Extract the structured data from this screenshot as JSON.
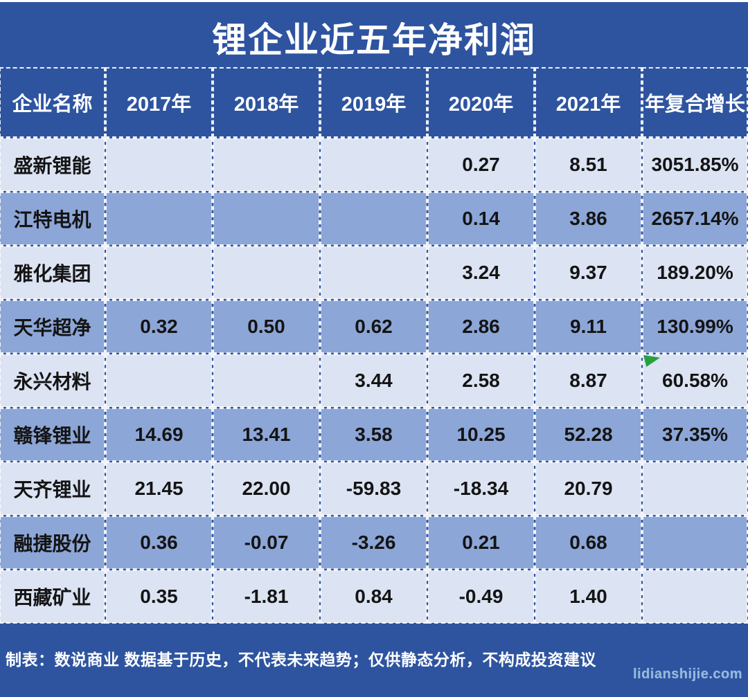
{
  "title": "锂企业近五年净利润",
  "chart_data": {
    "type": "table",
    "title": "锂企业近五年净利润",
    "columns": [
      "企业名称",
      "2017年",
      "2018年",
      "2019年",
      "2020年",
      "2021年",
      "年复合增长"
    ],
    "rows": [
      [
        "盛新锂能",
        "",
        "",
        "",
        "0.27",
        "8.51",
        "3051.85%"
      ],
      [
        "江特电机",
        "",
        "",
        "",
        "0.14",
        "3.86",
        "2657.14%"
      ],
      [
        "雅化集团",
        "",
        "",
        "",
        "3.24",
        "9.37",
        "189.20%"
      ],
      [
        "天华超净",
        "0.32",
        "0.50",
        "0.62",
        "2.86",
        "9.11",
        "130.99%"
      ],
      [
        "永兴材料",
        "",
        "",
        "3.44",
        "2.58",
        "8.87",
        "60.58%"
      ],
      [
        "赣锋锂业",
        "14.69",
        "13.41",
        "3.58",
        "10.25",
        "52.28",
        "37.35%"
      ],
      [
        "天齐锂业",
        "21.45",
        "22.00",
        "-59.83",
        "-18.34",
        "20.79",
        ""
      ],
      [
        "融捷股份",
        "0.36",
        "-0.07",
        "-3.26",
        "0.21",
        "0.68",
        ""
      ],
      [
        "西藏矿业",
        "0.35",
        "-1.81",
        "0.84",
        "-0.49",
        "1.40",
        ""
      ]
    ],
    "marker": {
      "shape": "green-corner-triangle",
      "row": "永兴材料",
      "column": "年复合增长",
      "color": "#28a03e"
    }
  },
  "footer": {
    "note": "制表：数说商业 数据基于历史，不代表未来趋势；仅供静态分析，不构成投资建议",
    "watermark": "lidianshijie.com"
  },
  "colors": {
    "background": "#2e54a0",
    "row_light": "#dce3f3",
    "row_medium": "#8ca6d7",
    "header_text": "#ffffff",
    "cell_text": "#141414",
    "border_dashed": "#ffffff",
    "marker_green": "#28a03e",
    "watermark_text": "#9cc3e6",
    "top_strip": "#ffffff"
  }
}
